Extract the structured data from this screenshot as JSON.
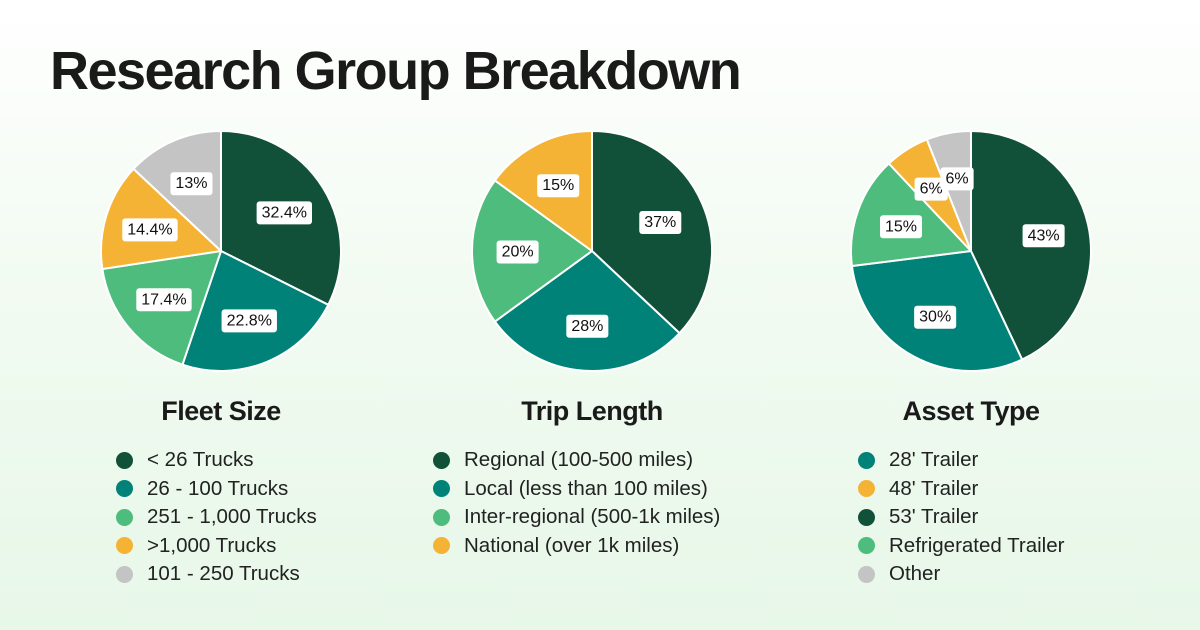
{
  "title": "Research Group Breakdown",
  "colors": {
    "dark_green": "#125139",
    "teal": "#008278",
    "light_green": "#4dbc7c",
    "yellow": "#f5b335",
    "gray": "#c4c4c4"
  },
  "chart_data": [
    {
      "type": "pie",
      "title": "Fleet Size",
      "slices": [
        {
          "label": "< 26 Trucks",
          "value": 32.4,
          "display": "32.4%",
          "color": "#125139"
        },
        {
          "label": "26 - 100 Trucks",
          "value": 22.8,
          "display": "22.8%",
          "color": "#008278"
        },
        {
          "label": "251 - 1,000 Trucks",
          "value": 17.4,
          "display": "17.4%",
          "color": "#4dbc7c"
        },
        {
          "label": ">1,000 Trucks",
          "value": 14.4,
          "display": "14.4%",
          "color": "#f5b335"
        },
        {
          "label": "101 - 250 Trucks",
          "value": 13,
          "display": "13%",
          "color": "#c4c4c4"
        }
      ],
      "legend": [
        "< 26 Trucks",
        "26 - 100 Trucks",
        "251 - 1,000 Trucks",
        ">1,000 Trucks",
        "101 - 250 Trucks"
      ]
    },
    {
      "type": "pie",
      "title": "Trip Length",
      "slices": [
        {
          "label": "Regional (100-500 miles)",
          "value": 37,
          "display": "37%",
          "color": "#125139"
        },
        {
          "label": "Local (less than 100 miles)",
          "value": 28,
          "display": "28%",
          "color": "#008278"
        },
        {
          "label": "Inter-regional (500-1k miles)",
          "value": 20,
          "display": "20%",
          "color": "#4dbc7c"
        },
        {
          "label": "National (over 1k miles)",
          "value": 15,
          "display": "15%",
          "color": "#f5b335"
        }
      ],
      "legend": [
        "Regional (100-500 miles)",
        "Local (less than 100 miles)",
        "Inter-regional (500-1k miles)",
        "National (over 1k miles)"
      ]
    },
    {
      "type": "pie",
      "title": "Asset Type",
      "slices": [
        {
          "label": "53' Trailer",
          "value": 43,
          "display": "43%",
          "color": "#125139"
        },
        {
          "label": "28' Trailer",
          "value": 30,
          "display": "30%",
          "color": "#008278"
        },
        {
          "label": "Refrigerated Trailer",
          "value": 15,
          "display": "15%",
          "color": "#4dbc7c"
        },
        {
          "label": "48' Trailer",
          "value": 6,
          "display": "6%",
          "color": "#f5b335"
        },
        {
          "label": "Other",
          "value": 6,
          "display": "6%",
          "color": "#c4c4c4"
        }
      ],
      "legend": [
        "28' Trailer",
        "48' Trailer",
        "53' Trailer",
        "Refrigerated Trailer",
        "Other"
      ]
    }
  ]
}
